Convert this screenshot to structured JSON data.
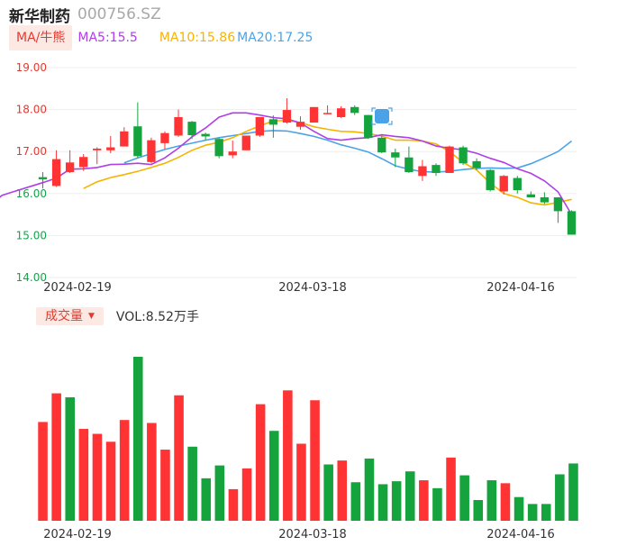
{
  "header": {
    "name": "新华制药",
    "code": "000756.SZ"
  },
  "ma_bar": {
    "selector": "MA/牛熊",
    "ma5": "MA5:15.5",
    "ma10": "MA10:15.86",
    "ma20": "MA20:17.25"
  },
  "volume_bar": {
    "selector": "成交量",
    "value": "VOL:8.52万手"
  },
  "colors": {
    "up": "#ff3333",
    "down": "#14a33c",
    "ma5": "#b03ee8",
    "ma10": "#f5b400",
    "ma20": "#4aa3e8",
    "grid": "#eeeeee"
  },
  "chart_data": [
    {
      "type": "candlestick",
      "title": "",
      "x_tick_labels": [
        "2024-02-19",
        "2024-03-18",
        "2024-04-16"
      ],
      "y_tick_labels": [
        "19.00",
        "18.00",
        "17.00",
        "16.00",
        "15.00",
        "14.00"
      ],
      "ylim": [
        14.0,
        19.0
      ],
      "grid": true,
      "candles": [
        {
          "o": 16.39,
          "c": 16.34,
          "h": 16.51,
          "l": 16.12
        },
        {
          "o": 16.18,
          "c": 16.82,
          "h": 17.03,
          "l": 16.16
        },
        {
          "o": 16.51,
          "c": 16.74,
          "h": 17.03,
          "l": 16.49
        },
        {
          "o": 16.63,
          "c": 16.87,
          "h": 16.94,
          "l": 16.54
        },
        {
          "o": 17.03,
          "c": 17.07,
          "h": 17.1,
          "l": 16.7
        },
        {
          "o": 17.03,
          "c": 17.1,
          "h": 17.37,
          "l": 16.96
        },
        {
          "o": 17.12,
          "c": 17.48,
          "h": 17.58,
          "l": 17.12
        },
        {
          "o": 17.6,
          "c": 16.89,
          "h": 18.17,
          "l": 16.84
        },
        {
          "o": 16.75,
          "c": 17.27,
          "h": 17.33,
          "l": 16.72
        },
        {
          "o": 17.2,
          "c": 17.44,
          "h": 17.48,
          "l": 17.06
        },
        {
          "o": 17.38,
          "c": 17.82,
          "h": 18.0,
          "l": 17.35
        },
        {
          "o": 17.71,
          "c": 17.39,
          "h": 17.73,
          "l": 17.3
        },
        {
          "o": 17.42,
          "c": 17.36,
          "h": 17.45,
          "l": 17.27
        },
        {
          "o": 17.3,
          "c": 16.89,
          "h": 17.33,
          "l": 16.84
        },
        {
          "o": 16.91,
          "c": 17.0,
          "h": 17.26,
          "l": 16.84
        },
        {
          "o": 17.03,
          "c": 17.38,
          "h": 17.38,
          "l": 17.03
        },
        {
          "o": 17.38,
          "c": 17.82,
          "h": 17.82,
          "l": 17.35
        },
        {
          "o": 17.77,
          "c": 17.64,
          "h": 17.86,
          "l": 17.33
        },
        {
          "o": 17.69,
          "c": 17.99,
          "h": 18.27,
          "l": 17.67
        },
        {
          "o": 17.59,
          "c": 17.71,
          "h": 17.84,
          "l": 17.52
        },
        {
          "o": 17.69,
          "c": 18.06,
          "h": 18.06,
          "l": 17.69
        },
        {
          "o": 17.92,
          "c": 17.92,
          "h": 18.1,
          "l": 17.89
        },
        {
          "o": 17.82,
          "c": 18.03,
          "h": 18.08,
          "l": 17.8
        },
        {
          "o": 18.06,
          "c": 17.92,
          "h": 18.1,
          "l": 17.87
        },
        {
          "o": 17.87,
          "c": 17.33,
          "h": 17.87,
          "l": 17.3
        },
        {
          "o": 17.33,
          "c": 16.98,
          "h": 17.37,
          "l": 16.96
        },
        {
          "o": 16.98,
          "c": 16.86,
          "h": 17.07,
          "l": 16.63
        },
        {
          "o": 16.86,
          "c": 16.51,
          "h": 17.12,
          "l": 16.49
        },
        {
          "o": 16.42,
          "c": 16.65,
          "h": 16.8,
          "l": 16.3
        },
        {
          "o": 16.68,
          "c": 16.49,
          "h": 16.72,
          "l": 16.42
        },
        {
          "o": 16.49,
          "c": 17.12,
          "h": 17.14,
          "l": 16.49
        },
        {
          "o": 17.1,
          "c": 16.72,
          "h": 17.14,
          "l": 16.68
        },
        {
          "o": 16.77,
          "c": 16.61,
          "h": 16.84,
          "l": 16.56
        },
        {
          "o": 16.56,
          "c": 16.08,
          "h": 16.58,
          "l": 16.05
        },
        {
          "o": 16.05,
          "c": 16.42,
          "h": 16.44,
          "l": 15.98
        },
        {
          "o": 16.37,
          "c": 16.08,
          "h": 16.42,
          "l": 16.0
        },
        {
          "o": 15.98,
          "c": 15.91,
          "h": 16.05,
          "l": 15.91
        },
        {
          "o": 15.91,
          "c": 15.79,
          "h": 16.03,
          "l": 15.75
        },
        {
          "o": 15.91,
          "c": 15.58,
          "h": 15.91,
          "l": 15.3
        },
        {
          "o": 15.58,
          "c": 15.02,
          "h": 15.6,
          "l": 15.02
        }
      ],
      "volume": [
        {
          "v": 100.0,
          "up": true
        },
        {
          "v": 129.0,
          "up": true
        },
        {
          "v": 125.0,
          "up": false
        },
        {
          "v": 93.0,
          "up": true
        },
        {
          "v": 88.0,
          "up": true
        },
        {
          "v": 80.0,
          "up": true
        },
        {
          "v": 102.0,
          "up": true
        },
        {
          "v": 166.0,
          "up": false
        },
        {
          "v": 99.0,
          "up": true
        },
        {
          "v": 72.0,
          "up": true
        },
        {
          "v": 127.0,
          "up": true
        },
        {
          "v": 75.0,
          "up": false
        },
        {
          "v": 43.0,
          "up": false
        },
        {
          "v": 56.0,
          "up": false
        },
        {
          "v": 32.0,
          "up": true
        },
        {
          "v": 53.0,
          "up": true
        },
        {
          "v": 118.0,
          "up": true
        },
        {
          "v": 91.0,
          "up": false
        },
        {
          "v": 132.0,
          "up": true
        },
        {
          "v": 78.0,
          "up": true
        },
        {
          "v": 122.0,
          "up": true
        },
        {
          "v": 57.0,
          "up": false
        },
        {
          "v": 61.0,
          "up": true
        },
        {
          "v": 39.0,
          "up": false
        },
        {
          "v": 63.0,
          "up": false
        },
        {
          "v": 37.0,
          "up": false
        },
        {
          "v": 40.0,
          "up": false
        },
        {
          "v": 50.0,
          "up": false
        },
        {
          "v": 41.0,
          "up": true
        },
        {
          "v": 33.0,
          "up": false
        },
        {
          "v": 64.0,
          "up": true
        },
        {
          "v": 46.0,
          "up": false
        },
        {
          "v": 21.0,
          "up": false
        },
        {
          "v": 41.0,
          "up": false
        },
        {
          "v": 38.0,
          "up": true
        },
        {
          "v": 24.0,
          "up": false
        },
        {
          "v": 17.0,
          "up": false
        },
        {
          "v": 17.0,
          "up": false
        },
        {
          "v": 47.0,
          "up": false
        },
        {
          "v": 58.0,
          "up": false
        }
      ],
      "ma5": [
        15.69,
        15.96,
        16.06,
        16.16,
        16.26,
        16.37,
        16.58,
        16.59,
        16.62,
        16.69,
        16.7,
        16.72,
        16.69,
        16.85,
        17.08,
        17.35,
        17.56,
        17.82,
        17.92,
        17.92,
        17.87,
        17.81,
        17.78,
        17.68,
        17.48,
        17.31,
        17.27,
        17.31,
        17.33,
        17.4,
        17.36,
        17.33,
        17.25,
        17.13,
        17.08,
        17.04,
        16.96,
        16.84,
        16.74,
        16.59,
        16.48,
        16.3,
        16.04,
        15.5
      ],
      "ma10": [
        16.12,
        16.28,
        16.38,
        16.45,
        16.53,
        16.62,
        16.72,
        16.86,
        17.03,
        17.15,
        17.22,
        17.33,
        17.48,
        17.61,
        17.73,
        17.74,
        17.69,
        17.59,
        17.53,
        17.48,
        17.47,
        17.43,
        17.37,
        17.27,
        17.27,
        17.25,
        17.18,
        17.0,
        16.74,
        16.56,
        16.25,
        16.0,
        15.91,
        15.78,
        15.73,
        15.79,
        15.86
      ],
      "ma20": [
        16.73,
        16.85,
        16.95,
        17.05,
        17.13,
        17.2,
        17.27,
        17.33,
        17.38,
        17.43,
        17.48,
        17.5,
        17.49,
        17.43,
        17.36,
        17.27,
        17.16,
        17.08,
        16.99,
        16.83,
        16.66,
        16.58,
        16.52,
        16.51,
        16.53,
        16.57,
        16.6,
        16.61,
        16.6,
        16.61,
        16.71,
        16.85,
        17.0,
        17.25
      ]
    }
  ]
}
